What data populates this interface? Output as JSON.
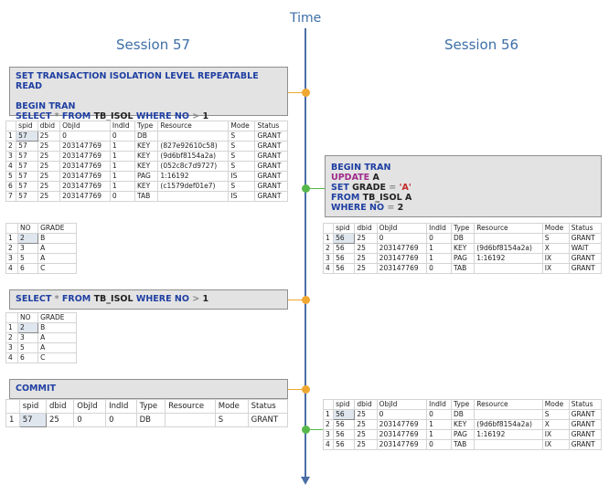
{
  "time_label": "Time",
  "session57_title": "Session 57",
  "session56_title": "Session 56",
  "q1": {
    "line1": "SET TRANSACTION ISOLATION LEVEL REPEATABLE READ",
    "line2": "BEGIN TRAN",
    "line3_kw1": "SELECT",
    "line3_op1": "*",
    "line3_kw2": "FROM",
    "line3_tbl": "TB_ISOL",
    "line3_kw3": "WHERE",
    "line3_col": "NO",
    "line3_op2": ">",
    "line3_val": "1"
  },
  "lock_headers": [
    "",
    "spid",
    "dbid",
    "ObjId",
    "IndId",
    "Type",
    "Resource",
    "Mode",
    "Status"
  ],
  "lock_table_1": [
    [
      "1",
      "57",
      "25",
      "0",
      "0",
      "DB",
      "",
      "S",
      "GRANT"
    ],
    [
      "2",
      "57",
      "25",
      "203147769",
      "1",
      "KEY",
      "(827e92610c58)",
      "S",
      "GRANT"
    ],
    [
      "3",
      "57",
      "25",
      "203147769",
      "1",
      "KEY",
      "(9d6bf8154a2a)",
      "S",
      "GRANT"
    ],
    [
      "4",
      "57",
      "25",
      "203147769",
      "1",
      "KEY",
      "(052c8c7d9727)",
      "S",
      "GRANT"
    ],
    [
      "5",
      "57",
      "25",
      "203147769",
      "1",
      "PAG",
      "1:16192",
      "IS",
      "GRANT"
    ],
    [
      "6",
      "57",
      "25",
      "203147769",
      "1",
      "KEY",
      "(c1579def01e7)",
      "S",
      "GRANT"
    ],
    [
      "7",
      "57",
      "25",
      "203147769",
      "0",
      "TAB",
      "",
      "IS",
      "GRANT"
    ]
  ],
  "result_headers": [
    "",
    "NO",
    "GRADE"
  ],
  "result_1": [
    [
      "1",
      "2",
      "B"
    ],
    [
      "2",
      "3",
      "A"
    ],
    [
      "3",
      "5",
      "A"
    ],
    [
      "4",
      "6",
      "C"
    ]
  ],
  "q2": {
    "kw1": "SELECT",
    "op1": "*",
    "kw2": "FROM",
    "tbl": "TB_ISOL",
    "kw3": "WHERE",
    "col": "NO",
    "op2": ">",
    "val": "1"
  },
  "result_2": [
    [
      "1",
      "2",
      "B"
    ],
    [
      "2",
      "3",
      "A"
    ],
    [
      "3",
      "5",
      "A"
    ],
    [
      "4",
      "6",
      "C"
    ]
  ],
  "q3": {
    "line1": "COMMIT"
  },
  "lock_table_3": [
    [
      "1",
      "57",
      "25",
      "0",
      "0",
      "DB",
      "",
      "S",
      "GRANT"
    ]
  ],
  "u": {
    "line1": "BEGIN TRAN",
    "kw_update": "UPDATE",
    "tbl_a": "A",
    "kw_set": "SET",
    "col_grade": "GRADE",
    "op_eq": "=",
    "val_a": "'A'",
    "kw_from": "FROM",
    "tbl_isol": "TB_ISOL A",
    "kw_where": "WHERE",
    "col_no": "NO",
    "op_eq2": "=",
    "val_2": "2"
  },
  "lock_table_u1": [
    [
      "1",
      "56",
      "25",
      "0",
      "0",
      "DB",
      "",
      "S",
      "GRANT"
    ],
    [
      "2",
      "56",
      "25",
      "203147769",
      "1",
      "KEY",
      "(9d6bf8154a2a)",
      "X",
      "WAIT"
    ],
    [
      "3",
      "56",
      "25",
      "203147769",
      "1",
      "PAG",
      "1:16192",
      "IX",
      "GRANT"
    ],
    [
      "4",
      "56",
      "25",
      "203147769",
      "0",
      "TAB",
      "",
      "IX",
      "GRANT"
    ]
  ],
  "lock_table_u2": [
    [
      "1",
      "56",
      "25",
      "0",
      "0",
      "DB",
      "",
      "S",
      "GRANT"
    ],
    [
      "2",
      "56",
      "25",
      "203147769",
      "1",
      "KEY",
      "(9d6bf8154a2a)",
      "X",
      "GRANT"
    ],
    [
      "3",
      "56",
      "25",
      "203147769",
      "1",
      "PAG",
      "1:16192",
      "IX",
      "GRANT"
    ],
    [
      "4",
      "56",
      "25",
      "203147769",
      "0",
      "TAB",
      "",
      "IX",
      "GRANT"
    ]
  ],
  "colors": {
    "timeline": "#4a6ea6",
    "orange_marker": "#f0a830",
    "green_marker": "#55b84a",
    "title": "#3d6fa8"
  }
}
